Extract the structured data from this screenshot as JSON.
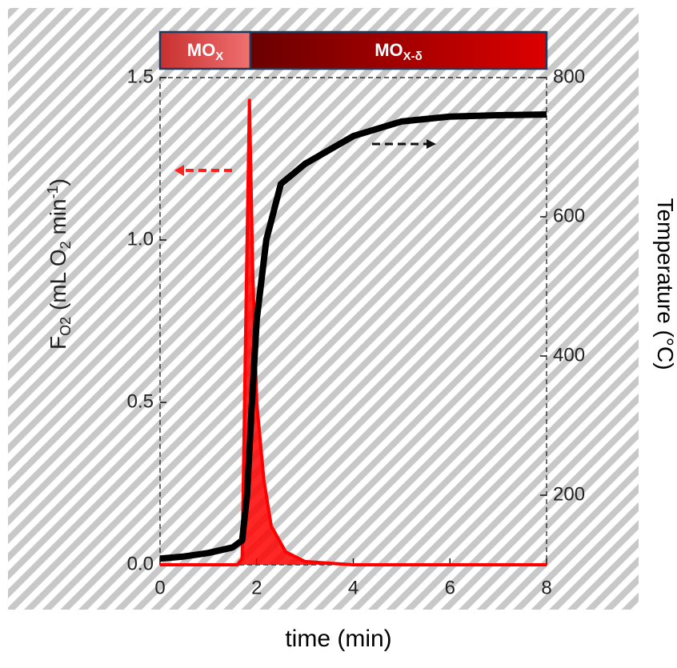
{
  "chart_data": {
    "type": "line",
    "x_label": "time (min)",
    "y_label": [
      "F",
      "O2",
      " (mL O",
      "2",
      " min",
      "-1",
      ")"
    ],
    "y2_label": "Temperature (°C)",
    "phases": [
      {
        "label": "MO",
        "sub": "X"
      },
      {
        "label": "MO",
        "sub": "X-δ"
      }
    ],
    "xlim": [
      0,
      8
    ],
    "xticks": [
      0,
      2,
      4,
      6,
      8
    ],
    "ylim": [
      0,
      1.5
    ],
    "yticks": [
      {
        "value": 0,
        "label": "0.0"
      },
      0.5,
      {
        "value": 1,
        "label": "1.0"
      },
      1.5
    ],
    "y2lim": [
      100,
      800
    ],
    "y2ticks": [
      200,
      400,
      600,
      800
    ],
    "series": [
      {
        "color": "#ff0000",
        "fill": true,
        "x": [
          0,
          1.6,
          1.7,
          1.78,
          1.85,
          1.92,
          2.0,
          2.15,
          2.3,
          2.6,
          3,
          4,
          8
        ],
        "values": [
          0,
          0,
          0.02,
          0.8,
          1.43,
          0.9,
          0.5,
          0.26,
          0.12,
          0.04,
          0.01,
          0,
          0
        ]
      },
      {
        "color": "#000000",
        "axis": "y2",
        "x": [
          0,
          0.5,
          1,
          1.5,
          1.7,
          1.8,
          1.9,
          2.0,
          2.2,
          2.5,
          3,
          4,
          5,
          6,
          7,
          8
        ],
        "values": [
          109,
          112,
          117,
          125,
          135,
          200,
          330,
          452,
          567,
          647,
          676,
          716,
          737,
          744,
          746,
          747
        ]
      }
    ]
  }
}
